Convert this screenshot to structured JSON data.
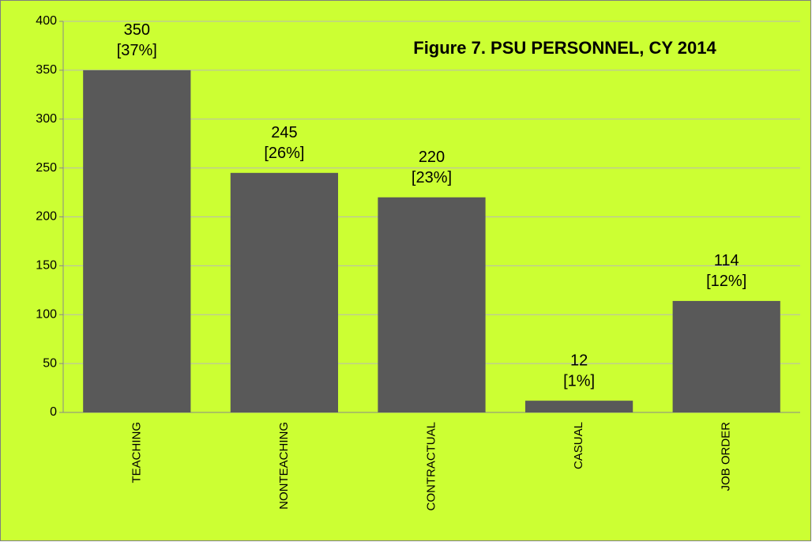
{
  "chart_data": {
    "type": "bar",
    "title": "Figure 7. PSU PERSONNEL, CY 2014",
    "categories": [
      "TEACHING",
      "NONTEACHING",
      "CONTRACTUAL",
      "CASUAL",
      "JOB ORDER"
    ],
    "values": [
      350,
      245,
      220,
      12,
      114
    ],
    "percent_labels": [
      "[37%]",
      "[26%]",
      "[23%]",
      "[1%]",
      "[12%]"
    ],
    "color": "#595959",
    "background": "#ccff33",
    "ylim": [
      0,
      400
    ],
    "yticks": [
      0,
      50,
      100,
      150,
      200,
      250,
      300,
      350,
      400
    ],
    "grid": true
  }
}
